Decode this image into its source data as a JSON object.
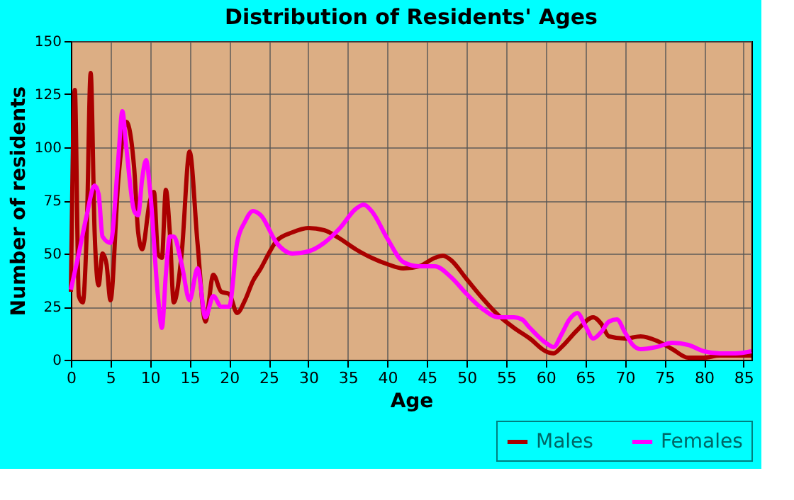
{
  "chart_data": {
    "type": "line",
    "title": "Distribution of Residents' Ages",
    "xlabel": "Age",
    "ylabel": "Number of residents",
    "xlim": [
      0,
      86
    ],
    "xticks": [
      0,
      5,
      10,
      15,
      20,
      25,
      30,
      35,
      40,
      45,
      50,
      55,
      60,
      65,
      70,
      75,
      80,
      85
    ],
    "ylim": [
      0,
      150
    ],
    "yticks": [
      0,
      25,
      50,
      75,
      100,
      125,
      150
    ],
    "grid": true,
    "legend": "bottom right",
    "marker": "none",
    "line_style": "solid",
    "series": [
      {
        "name": "Males",
        "color": "#aa0000",
        "x": [
          0,
          0.5,
          1,
          1.5,
          2,
          2.5,
          3,
          3.5,
          4,
          4.5,
          5,
          6,
          7,
          8,
          8.5,
          9,
          10,
          10.5,
          11,
          11.5,
          12,
          12.5,
          13,
          14,
          15,
          16,
          17,
          18,
          19,
          20,
          21,
          22,
          23,
          24,
          25,
          26,
          28,
          30,
          32,
          34,
          36,
          38,
          40,
          42,
          44,
          46,
          47,
          48,
          50,
          52,
          54,
          56,
          58,
          60,
          61,
          62,
          64,
          66,
          67,
          68,
          70,
          72,
          74,
          76,
          78,
          80,
          82,
          84,
          86
        ],
        "values": [
          32,
          127,
          30,
          27,
          60,
          135,
          60,
          35,
          50,
          45,
          28,
          85,
          112,
          90,
          60,
          52,
          75,
          79,
          50,
          48,
          80,
          60,
          27,
          50,
          98,
          55,
          18,
          40,
          32,
          31,
          22,
          28,
          37,
          43,
          50,
          56,
          60,
          62,
          61,
          57,
          52,
          48,
          45,
          43,
          44,
          48,
          49,
          47,
          38,
          29,
          21,
          15,
          10,
          4,
          3,
          6,
          14,
          20,
          17,
          11,
          10,
          11,
          9,
          5,
          1,
          1,
          2,
          2,
          2
        ]
      },
      {
        "name": "Females",
        "color": "#ff00ff",
        "x": [
          0,
          1,
          2,
          3,
          3.5,
          4,
          5,
          6,
          6.5,
          7,
          8,
          8.5,
          9,
          9.5,
          10,
          11,
          11.5,
          12,
          12.5,
          13,
          14,
          15,
          16,
          17,
          18,
          19,
          20,
          21,
          22,
          23,
          24,
          26,
          28,
          30,
          32,
          34,
          36,
          37,
          38,
          40,
          42,
          44,
          46,
          48,
          50,
          52,
          54,
          56,
          57,
          58,
          60,
          61,
          62,
          63,
          64,
          65,
          66,
          67,
          68,
          69,
          70,
          71,
          72,
          74,
          76,
          78,
          80,
          82,
          84,
          86
        ],
        "values": [
          33,
          50,
          68,
          82,
          78,
          58,
          55,
          95,
          117,
          100,
          70,
          68,
          85,
          94,
          80,
          30,
          15,
          40,
          58,
          58,
          45,
          28,
          43,
          20,
          30,
          25,
          25,
          55,
          65,
          70,
          68,
          55,
          50,
          51,
          55,
          62,
          71,
          73,
          70,
          57,
          46,
          44,
          44,
          39,
          31,
          24,
          20,
          20,
          19,
          15,
          8,
          6,
          12,
          19,
          22,
          16,
          10,
          13,
          18,
          19,
          13,
          7,
          5,
          6,
          8,
          7,
          4,
          3,
          3,
          4
        ]
      }
    ]
  }
}
